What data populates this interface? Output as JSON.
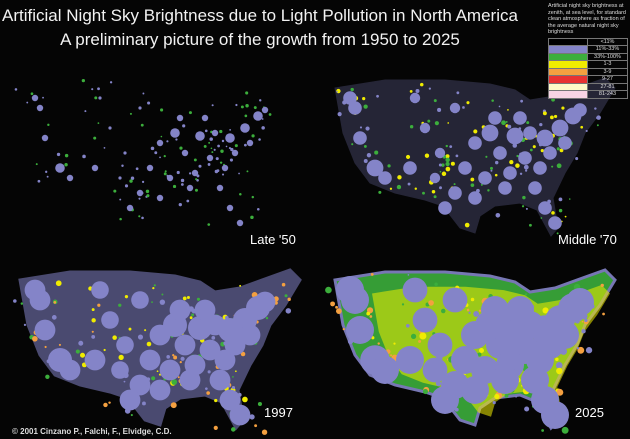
{
  "title_line1": "Artificial Night Sky Brightness due to Light Pollution in North America",
  "title_line2": "A preliminary picture of the growth from 1950 to 2025",
  "legend": {
    "title": "Artificial night sky brightness at zenith, at sea level, for standard clean atmosphere as fraction of the average natural night sky brightness",
    "items": [
      {
        "label": "<11%",
        "color": "#000000"
      },
      {
        "label": "11%-33%",
        "color": "#8484c8"
      },
      {
        "label": "33%-100%",
        "color": "#3cae3c"
      },
      {
        "label": "1-3",
        "color": "#f0ec00"
      },
      {
        "label": "3-9",
        "color": "#f4a040"
      },
      {
        "label": "9-27",
        "color": "#e83232"
      },
      {
        "label": "27-81",
        "color": "#fffac8"
      },
      {
        "label": "81-243",
        "color": "#f8d4e4"
      }
    ]
  },
  "panels": [
    {
      "label": "Late '50",
      "level": 0
    },
    {
      "label": "Middle '70",
      "level": 1
    },
    {
      "label": "1997",
      "level": 2
    },
    {
      "label": "2025",
      "level": 3
    }
  ],
  "credit": "© 2001  Cinzano P., Falchi, F., Elvidge, C.D."
}
